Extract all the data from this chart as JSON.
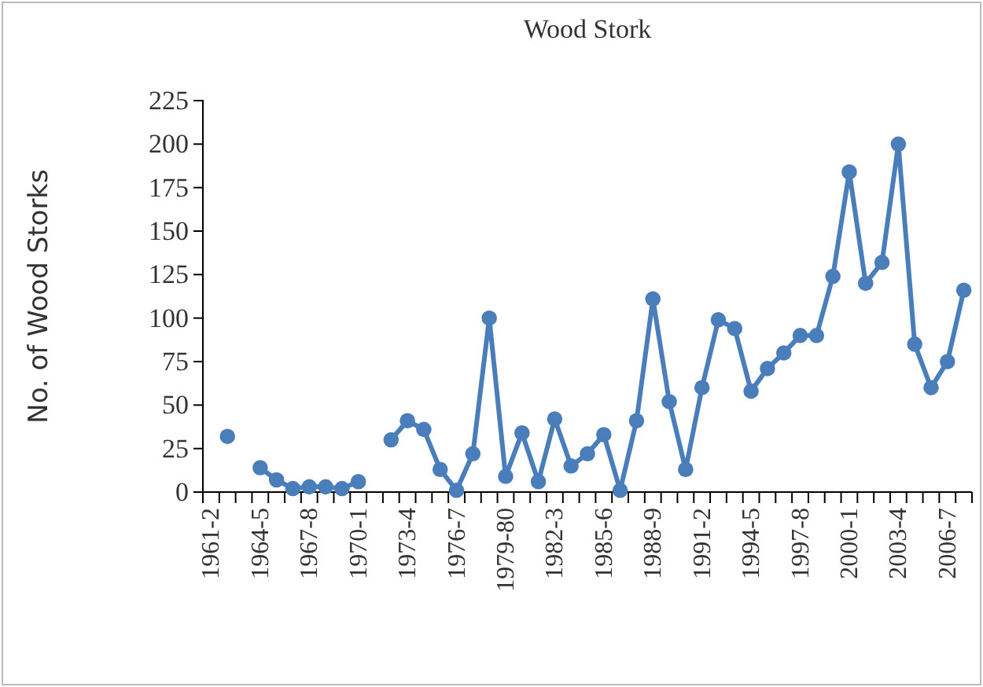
{
  "chart_data": {
    "type": "line",
    "title": "Wood Stork",
    "ylabel": "No. of Wood Storks",
    "categories": [
      "1961-2",
      null,
      null,
      "1964-5",
      null,
      null,
      "1967-8",
      null,
      null,
      "1970-1",
      null,
      null,
      "1973-4",
      null,
      null,
      "1976-7",
      null,
      null,
      "1979-80",
      null,
      null,
      "1982-3",
      null,
      null,
      "1985-6",
      null,
      null,
      "1988-9",
      null,
      null,
      "1991-2",
      null,
      null,
      "1994-5",
      null,
      null,
      "1997-8",
      null,
      null,
      "2000-1",
      null,
      null,
      "2003-4",
      null,
      null,
      "2006-7",
      null
    ],
    "series": [
      {
        "color": "#4a7ebb",
        "values": [
          null,
          32,
          null,
          14,
          7,
          2,
          3,
          3,
          2,
          6,
          null,
          30,
          41,
          36,
          13,
          1,
          22,
          100,
          9,
          34,
          6,
          42,
          15,
          22,
          33,
          1,
          41,
          111,
          52,
          13,
          60,
          99,
          94,
          58,
          71,
          80,
          90,
          90,
          124,
          184,
          120,
          132,
          200,
          85,
          60,
          75,
          116
        ]
      }
    ],
    "ylim": [
      0,
      225
    ],
    "yticks": [
      0,
      25,
      50,
      75,
      100,
      125,
      150,
      175,
      200,
      225
    ],
    "grid": false,
    "marker": "circle",
    "line_style": "solid"
  }
}
